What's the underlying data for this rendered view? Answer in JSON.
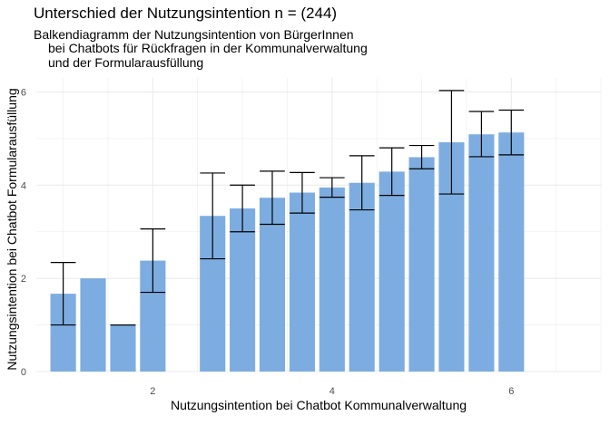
{
  "chart_data": {
    "type": "bar",
    "title": "Unterschied der Nutzungsintention n = (244)",
    "subtitle_lines": [
      "Balkendiagramm der Nutzungsintention von BürgerInnen",
      "bei Chatbots für Rückfragen in der Kommunalverwaltung",
      "und der Formularausfüllung"
    ],
    "xlabel": "Nutzungsintention bei Chatbot Kommunalverwaltung",
    "ylabel": "Nutzungsintention bei Chatbot Formularausfüllung",
    "xlim": [
      0.7,
      7.0
    ],
    "ylim": [
      0,
      6.3
    ],
    "x_ticks": [
      2,
      4,
      6
    ],
    "y_ticks": [
      0,
      2,
      4,
      6
    ],
    "grid": true,
    "bar_width": 0.3,
    "bar_color": "#7dade0",
    "error_color": "#000000",
    "grid_color": "#ebebeb",
    "points": [
      {
        "x": 1.0,
        "y": 1.67,
        "err_low": 1.0,
        "err_high": 2.34
      },
      {
        "x": 1.333,
        "y": 2.0,
        "err_low": null,
        "err_high": null
      },
      {
        "x": 1.667,
        "y": 1.0,
        "err_low": 1.0,
        "err_high": 1.0
      },
      {
        "x": 2.0,
        "y": 2.38,
        "err_low": 1.7,
        "err_high": 3.06
      },
      {
        "x": 2.667,
        "y": 3.34,
        "err_low": 2.42,
        "err_high": 4.26
      },
      {
        "x": 3.0,
        "y": 3.5,
        "err_low": 3.0,
        "err_high": 4.0
      },
      {
        "x": 3.333,
        "y": 3.73,
        "err_low": 3.16,
        "err_high": 4.3
      },
      {
        "x": 3.667,
        "y": 3.84,
        "err_low": 3.4,
        "err_high": 4.27
      },
      {
        "x": 4.0,
        "y": 3.95,
        "err_low": 3.74,
        "err_high": 4.16
      },
      {
        "x": 4.333,
        "y": 4.05,
        "err_low": 3.47,
        "err_high": 4.63
      },
      {
        "x": 4.667,
        "y": 4.29,
        "err_low": 3.78,
        "err_high": 4.8
      },
      {
        "x": 5.0,
        "y": 4.6,
        "err_low": 4.35,
        "err_high": 4.85
      },
      {
        "x": 5.333,
        "y": 4.92,
        "err_low": 3.81,
        "err_high": 6.03
      },
      {
        "x": 5.667,
        "y": 5.09,
        "err_low": 4.61,
        "err_high": 5.58
      },
      {
        "x": 6.0,
        "y": 5.13,
        "err_low": 4.65,
        "err_high": 5.61
      }
    ]
  }
}
